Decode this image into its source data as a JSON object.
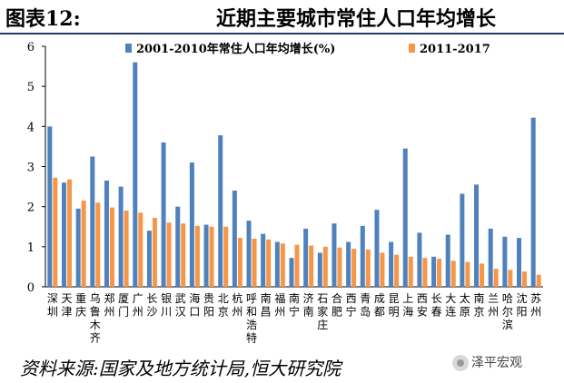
{
  "header": {
    "figure_label": "图表12:",
    "title": "近期主要城市常住人口年均增长"
  },
  "source": "资料来源:国家及地方统计局,恒大研究院",
  "logo": {
    "text": "泽平宏观",
    "icon": "wechat-logo-icon"
  },
  "colors": {
    "series1": "#4f81bd",
    "series2": "#f79646",
    "rule": "#1f3a68"
  },
  "chart_data": {
    "type": "bar",
    "ylim": [
      0,
      6
    ],
    "yticks": [
      "0",
      "1",
      "2",
      "3",
      "4",
      "5",
      "6"
    ],
    "legend_position": "top",
    "categories": [
      "深圳",
      "天津",
      "重庆",
      "乌鲁木齐",
      "郑州",
      "厦门",
      "广州",
      "长沙",
      "银川",
      "武汉",
      "海口",
      "贵阳",
      "北京",
      "杭州",
      "呼和浩特",
      "南昌",
      "福州",
      "南宁",
      "济南",
      "石家庄",
      "合肥",
      "西宁",
      "青岛",
      "成都",
      "昆明",
      "上海",
      "西安",
      "长春",
      "大连",
      "太原",
      "南京",
      "兰州",
      "哈尔滨",
      "沈阳",
      "苏州"
    ],
    "series": [
      {
        "name": "2001-2010年常住人口年均增长(%)",
        "values": [
          4.0,
          2.6,
          1.95,
          3.25,
          2.65,
          2.5,
          5.6,
          1.4,
          3.6,
          2.0,
          3.1,
          1.55,
          3.78,
          2.4,
          1.65,
          1.32,
          1.12,
          0.72,
          1.45,
          0.85,
          1.58,
          1.12,
          1.52,
          1.92,
          1.12,
          3.45,
          1.35,
          0.75,
          1.3,
          2.32,
          2.55,
          1.45,
          1.25,
          1.22,
          4.22
        ]
      },
      {
        "name": "2011-2017",
        "values": [
          2.72,
          2.68,
          2.15,
          2.1,
          1.98,
          1.9,
          1.85,
          1.72,
          1.6,
          1.58,
          1.52,
          1.5,
          1.5,
          1.22,
          1.2,
          1.18,
          1.08,
          1.05,
          1.03,
          1.0,
          0.98,
          0.95,
          0.93,
          0.85,
          0.8,
          0.75,
          0.72,
          0.7,
          0.65,
          0.62,
          0.58,
          0.45,
          0.42,
          0.38,
          0.3
        ]
      }
    ]
  }
}
